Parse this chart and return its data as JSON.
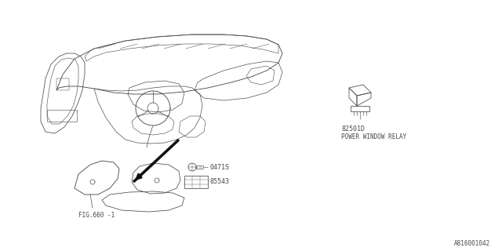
{
  "bg_color": "#ffffff",
  "line_color": "#4a4a4a",
  "text_color": "#4a4a4a",
  "part_labels": {
    "relay_part": "82501D",
    "relay_name": "POWER WINDOW RELAY",
    "screw": "0471S",
    "switch": "85543",
    "fig": "FIG.660 -1"
  },
  "footer_text": "A816001042",
  "fig_size": [
    6.4,
    3.2
  ],
  "dpi": 100
}
